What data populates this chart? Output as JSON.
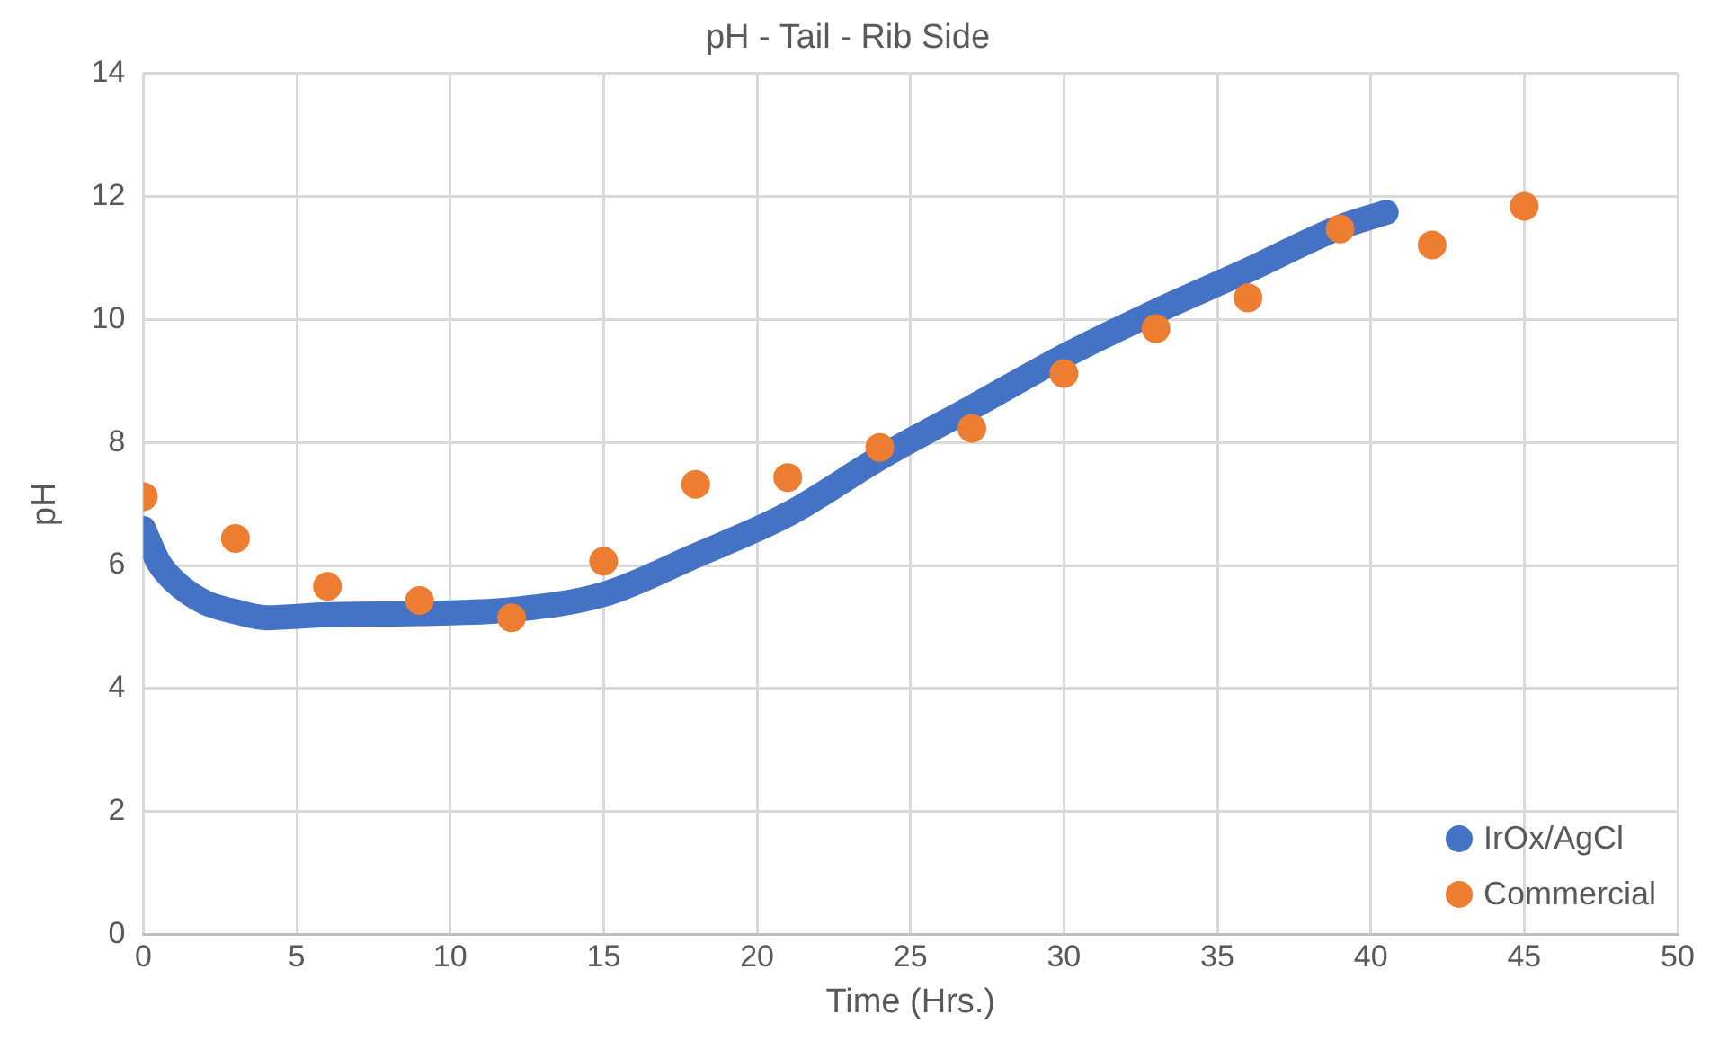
{
  "chart_data": {
    "type": "scatter",
    "title": "pH - Tail - Rib Side",
    "xlabel": "Time (Hrs.)",
    "ylabel": "pH",
    "xlim": [
      0,
      50
    ],
    "xticks": [
      0,
      5,
      10,
      15,
      20,
      25,
      30,
      35,
      40,
      45,
      50
    ],
    "ylim": [
      0,
      14
    ],
    "yticks": [
      0,
      2,
      4,
      6,
      8,
      10,
      12,
      14
    ],
    "grid": true,
    "legend": "bottom right",
    "marker": "circle",
    "series": [
      {
        "name": "IrOx/AgCl",
        "type": "line",
        "marker": "none",
        "color": "#4472c4",
        "x": [
          0,
          0.5,
          1,
          2,
          3,
          4,
          6,
          9,
          12,
          15,
          18,
          21,
          24,
          27,
          30,
          33,
          36,
          39,
          40.5
        ],
        "values": [
          6.6,
          6.05,
          5.75,
          5.4,
          5.25,
          5.15,
          5.2,
          5.22,
          5.28,
          5.53,
          6.16,
          6.83,
          7.75,
          8.57,
          9.4,
          10.13,
          10.8,
          11.5,
          11.74
        ]
      },
      {
        "name": "Commercial",
        "type": "scatter",
        "color": "#ed7d31",
        "x": [
          0,
          3,
          6,
          9,
          12,
          15,
          18,
          21,
          24,
          27,
          30,
          33,
          36,
          39,
          42,
          45
        ],
        "values": [
          7.12,
          6.44,
          5.66,
          5.43,
          5.15,
          6.07,
          7.32,
          7.43,
          7.92,
          8.23,
          9.12,
          9.85,
          10.35,
          11.47,
          11.21,
          11.84
        ]
      }
    ]
  }
}
